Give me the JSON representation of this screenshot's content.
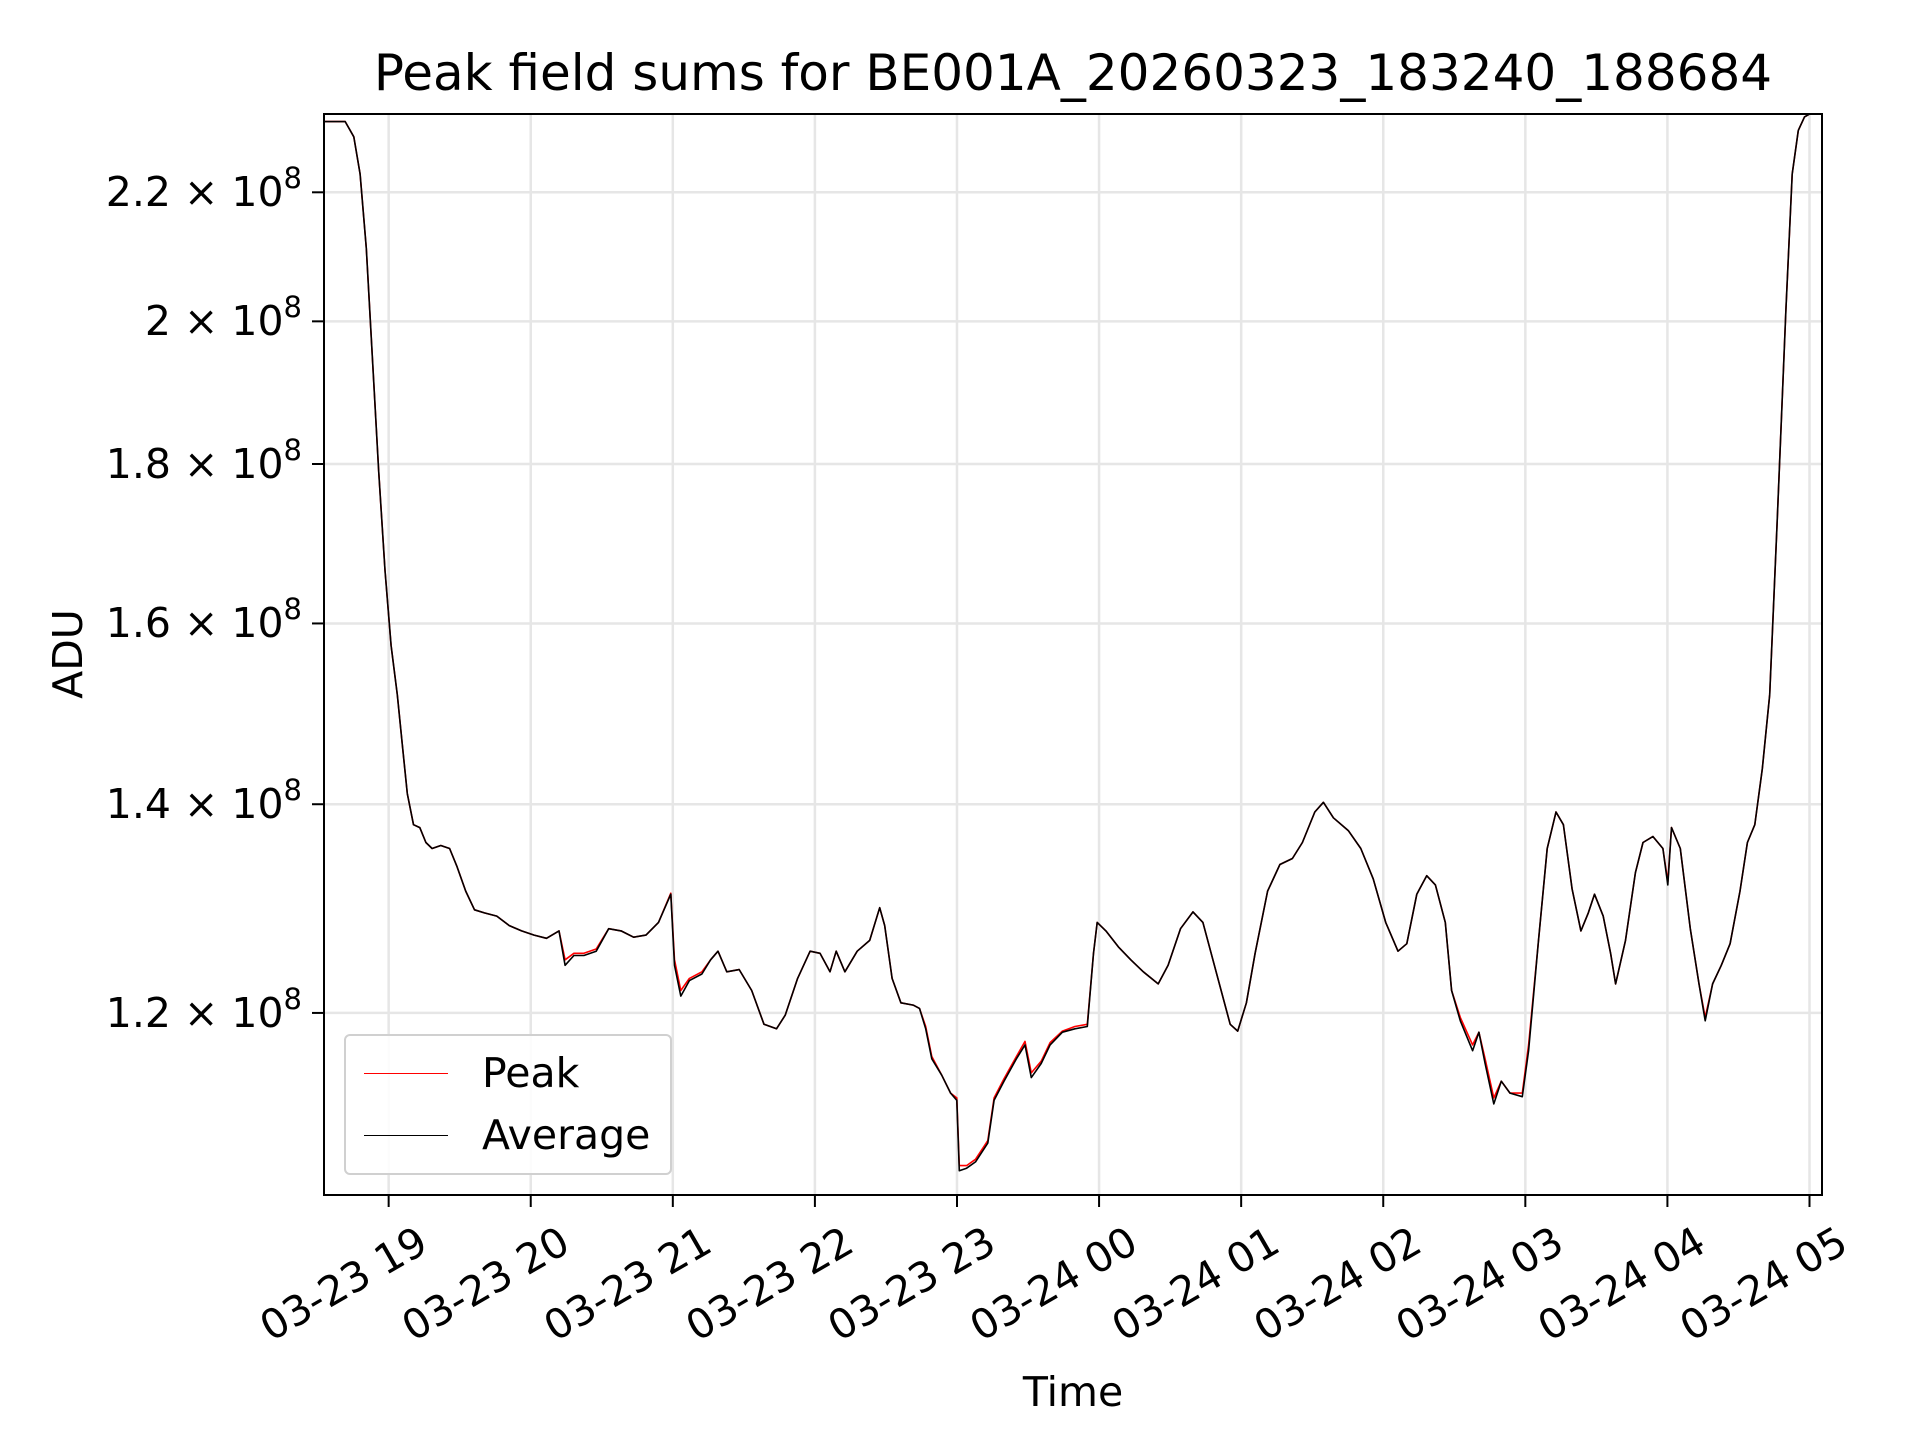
{
  "chart_data": {
    "type": "line",
    "title": "Peak field sums for BE001A_20260323_183240_188684",
    "xlabel": "Time",
    "ylabel": "ADU",
    "x_units": "hours since 03-23 00:00",
    "y_units": "ADU x 1e8",
    "y_scale": "log",
    "grid": true,
    "legend_placement": "lower-left",
    "xlim": [
      18.545,
      29.088
    ],
    "ylim": [
      1.049,
      2.331
    ],
    "x_ticks": [
      {
        "value": 19,
        "label": "03-23 19"
      },
      {
        "value": 20,
        "label": "03-23 20"
      },
      {
        "value": 21,
        "label": "03-23 21"
      },
      {
        "value": 22,
        "label": "03-23 22"
      },
      {
        "value": 23,
        "label": "03-23 23"
      },
      {
        "value": 24,
        "label": "03-24 00"
      },
      {
        "value": 25,
        "label": "03-24 01"
      },
      {
        "value": 26,
        "label": "03-24 02"
      },
      {
        "value": 27,
        "label": "03-24 03"
      },
      {
        "value": 28,
        "label": "03-24 04"
      },
      {
        "value": 29,
        "label": "03-24 05"
      }
    ],
    "y_ticks": [
      {
        "value": 1.2,
        "mantissa": "1.2",
        "times": "×",
        "base": "10",
        "exp": "8"
      },
      {
        "value": 1.4,
        "mantissa": "1.4",
        "times": "×",
        "base": "10",
        "exp": "8"
      },
      {
        "value": 1.6,
        "mantissa": "1.6",
        "times": "×",
        "base": "10",
        "exp": "8"
      },
      {
        "value": 1.8,
        "mantissa": "1.8",
        "times": "×",
        "base": "10",
        "exp": "8"
      },
      {
        "value": 2.0,
        "mantissa": "2",
        "times": "×",
        "base": "10",
        "exp": "8"
      },
      {
        "value": 2.2,
        "mantissa": "2.2",
        "times": "×",
        "base": "10",
        "exp": "8"
      }
    ],
    "x": [
      18.545,
      18.694,
      18.755,
      18.799,
      18.843,
      18.886,
      18.93,
      18.974,
      19.017,
      19.061,
      19.096,
      19.131,
      19.175,
      19.219,
      19.262,
      19.306,
      19.367,
      19.429,
      19.481,
      19.542,
      19.604,
      19.674,
      19.761,
      19.849,
      19.936,
      20.024,
      20.111,
      20.199,
      20.242,
      20.304,
      20.374,
      20.461,
      20.549,
      20.636,
      20.724,
      20.811,
      20.899,
      20.986,
      21.012,
      21.056,
      21.117,
      21.205,
      21.266,
      21.318,
      21.38,
      21.467,
      21.555,
      21.642,
      21.73,
      21.791,
      21.878,
      21.966,
      22.036,
      22.106,
      22.15,
      22.211,
      22.298,
      22.386,
      22.456,
      22.491,
      22.543,
      22.605,
      22.692,
      22.736,
      22.78,
      22.823,
      22.893,
      22.955,
      22.999,
      23.016,
      23.068,
      23.13,
      23.217,
      23.261,
      23.331,
      23.418,
      23.479,
      23.523,
      23.593,
      23.655,
      23.742,
      23.83,
      23.917,
      23.961,
      23.987,
      24.048,
      24.136,
      24.223,
      24.311,
      24.416,
      24.486,
      24.573,
      24.661,
      24.731,
      24.836,
      24.923,
      24.976,
      25.037,
      25.098,
      25.186,
      25.273,
      25.361,
      25.431,
      25.518,
      25.579,
      25.649,
      25.754,
      25.842,
      25.929,
      26.017,
      26.104,
      26.166,
      26.236,
      26.306,
      26.367,
      26.437,
      26.481,
      26.542,
      26.629,
      26.673,
      26.717,
      26.778,
      26.831,
      26.892,
      26.979,
      27.023,
      27.093,
      27.154,
      27.216,
      27.268,
      27.329,
      27.391,
      27.443,
      27.487,
      27.548,
      27.6,
      27.635,
      27.705,
      27.775,
      27.828,
      27.898,
      27.968,
      28.003,
      28.029,
      28.091,
      28.161,
      28.222,
      28.266,
      28.318,
      28.379,
      28.441,
      28.511,
      28.563,
      28.615,
      28.668,
      28.72,
      28.773,
      28.834,
      28.878,
      28.921,
      28.965,
      29.0
    ],
    "series": [
      {
        "name": "Peak",
        "color": "#ff0000",
        "values": [
          2.318,
          2.318,
          2.292,
          2.23,
          2.111,
          1.944,
          1.79,
          1.664,
          1.574,
          1.518,
          1.463,
          1.411,
          1.379,
          1.376,
          1.361,
          1.355,
          1.358,
          1.355,
          1.337,
          1.313,
          1.295,
          1.292,
          1.289,
          1.28,
          1.275,
          1.271,
          1.268,
          1.275,
          1.248,
          1.254,
          1.254,
          1.258,
          1.277,
          1.275,
          1.269,
          1.271,
          1.283,
          1.311,
          1.248,
          1.22,
          1.231,
          1.237,
          1.248,
          1.256,
          1.237,
          1.239,
          1.22,
          1.19,
          1.186,
          1.198,
          1.231,
          1.256,
          1.254,
          1.237,
          1.256,
          1.237,
          1.256,
          1.266,
          1.297,
          1.28,
          1.231,
          1.209,
          1.207,
          1.204,
          1.188,
          1.162,
          1.146,
          1.131,
          1.127,
          1.072,
          1.072,
          1.077,
          1.092,
          1.127,
          1.143,
          1.162,
          1.175,
          1.148,
          1.158,
          1.174,
          1.184,
          1.188,
          1.19,
          1.254,
          1.283,
          1.275,
          1.26,
          1.248,
          1.237,
          1.226,
          1.243,
          1.277,
          1.293,
          1.283,
          1.231,
          1.19,
          1.184,
          1.209,
          1.254,
          1.313,
          1.339,
          1.345,
          1.361,
          1.392,
          1.402,
          1.386,
          1.373,
          1.355,
          1.325,
          1.283,
          1.256,
          1.263,
          1.31,
          1.328,
          1.319,
          1.283,
          1.22,
          1.196,
          1.172,
          1.183,
          1.16,
          1.127,
          1.141,
          1.131,
          1.131,
          1.172,
          1.266,
          1.355,
          1.392,
          1.379,
          1.315,
          1.275,
          1.292,
          1.31,
          1.289,
          1.254,
          1.226,
          1.266,
          1.331,
          1.361,
          1.367,
          1.355,
          1.322,
          1.376,
          1.355,
          1.277,
          1.226,
          1.196,
          1.226,
          1.243,
          1.263,
          1.313,
          1.361,
          1.379,
          1.437,
          1.518,
          1.726,
          2.017,
          2.23,
          2.303,
          2.326,
          2.331
        ]
      },
      {
        "name": "Average",
        "color": "#000000",
        "values": [
          2.318,
          2.318,
          2.292,
          2.23,
          2.111,
          1.944,
          1.79,
          1.664,
          1.574,
          1.518,
          1.463,
          1.411,
          1.379,
          1.376,
          1.361,
          1.355,
          1.358,
          1.355,
          1.337,
          1.313,
          1.295,
          1.292,
          1.289,
          1.28,
          1.275,
          1.271,
          1.268,
          1.275,
          1.243,
          1.252,
          1.252,
          1.256,
          1.277,
          1.275,
          1.269,
          1.271,
          1.283,
          1.31,
          1.243,
          1.215,
          1.229,
          1.235,
          1.248,
          1.256,
          1.237,
          1.239,
          1.22,
          1.19,
          1.186,
          1.198,
          1.231,
          1.256,
          1.254,
          1.237,
          1.256,
          1.237,
          1.256,
          1.266,
          1.297,
          1.28,
          1.231,
          1.209,
          1.207,
          1.204,
          1.186,
          1.16,
          1.146,
          1.131,
          1.125,
          1.068,
          1.07,
          1.075,
          1.09,
          1.125,
          1.141,
          1.16,
          1.172,
          1.144,
          1.156,
          1.172,
          1.183,
          1.186,
          1.188,
          1.254,
          1.283,
          1.275,
          1.26,
          1.248,
          1.237,
          1.226,
          1.243,
          1.277,
          1.293,
          1.283,
          1.231,
          1.19,
          1.184,
          1.209,
          1.254,
          1.313,
          1.339,
          1.345,
          1.361,
          1.392,
          1.402,
          1.386,
          1.373,
          1.355,
          1.325,
          1.283,
          1.256,
          1.263,
          1.31,
          1.328,
          1.319,
          1.283,
          1.22,
          1.193,
          1.167,
          1.183,
          1.156,
          1.122,
          1.141,
          1.131,
          1.128,
          1.167,
          1.266,
          1.355,
          1.392,
          1.379,
          1.315,
          1.275,
          1.292,
          1.31,
          1.289,
          1.254,
          1.226,
          1.266,
          1.331,
          1.361,
          1.367,
          1.355,
          1.319,
          1.376,
          1.355,
          1.277,
          1.226,
          1.193,
          1.226,
          1.243,
          1.263,
          1.313,
          1.361,
          1.379,
          1.437,
          1.518,
          1.726,
          2.017,
          2.23,
          2.303,
          2.326,
          2.331
        ]
      }
    ]
  }
}
